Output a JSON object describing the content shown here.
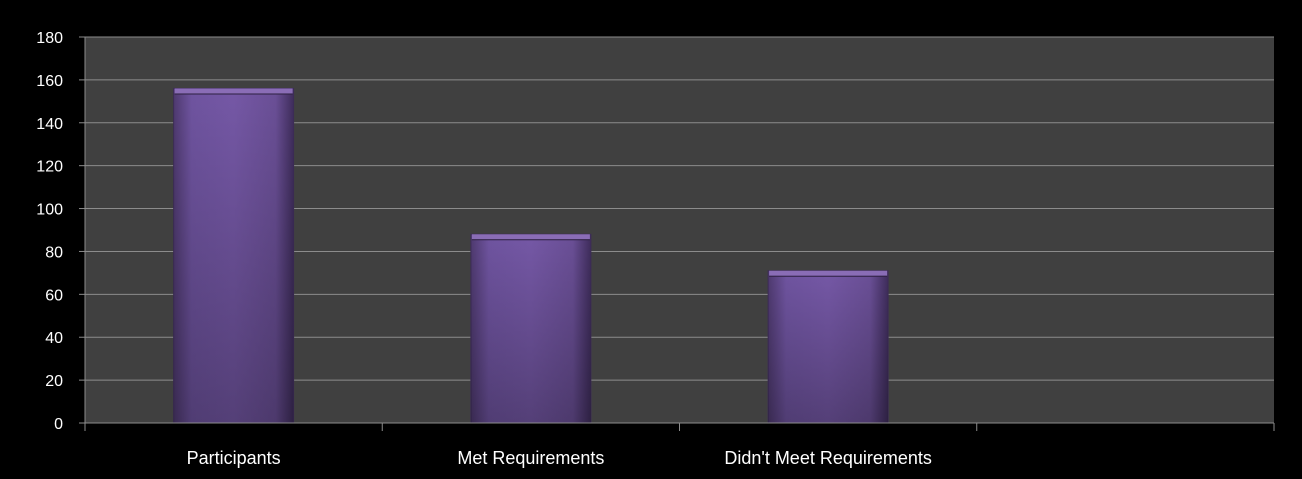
{
  "chart_data": {
    "type": "bar",
    "title": "",
    "xlabel": "",
    "ylabel": "",
    "categories": [
      "Participants",
      "Met Requirements",
      "Didn't Meet Requirements",
      ""
    ],
    "values": [
      156,
      88,
      71,
      null
    ],
    "ylim": [
      0,
      180
    ],
    "yticks": [
      0,
      20,
      40,
      60,
      80,
      100,
      120,
      140,
      160,
      180
    ],
    "grid": true,
    "legend": "none",
    "colors": {
      "background": "#000000",
      "plot_background": "#404040",
      "grid": "#8c8c8c",
      "bar": "#6b4f94",
      "bar_top": "#8a6db6",
      "bar_edge": "#3d2c57",
      "text": "#ffffff"
    }
  }
}
